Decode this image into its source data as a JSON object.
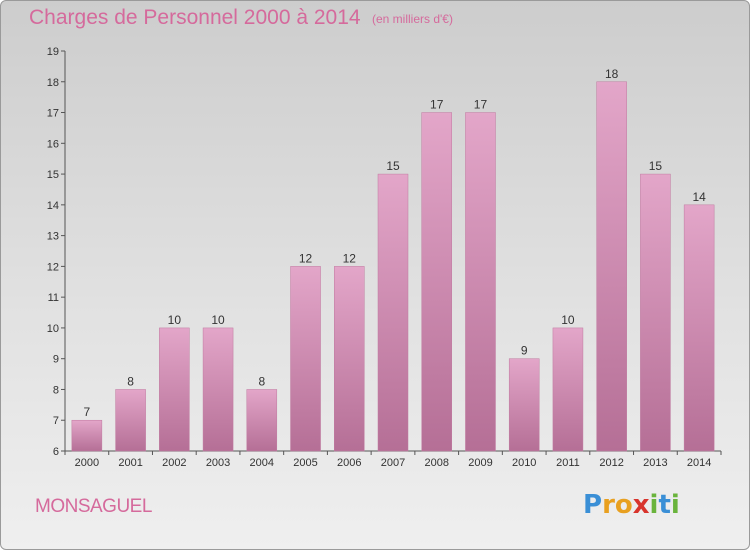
{
  "header": {
    "title": "Charges de Personnel 2000 à 2014",
    "unit_note": "(en milliers d'€)"
  },
  "footer": {
    "commune": "MONSAGUEL",
    "logo_text": "Proxiti",
    "logo_letters": [
      {
        "char": "P",
        "color": "#3a8fd6"
      },
      {
        "char": "r",
        "color": "#e8a020"
      },
      {
        "char": "o",
        "color": "#e8a020"
      },
      {
        "char": "x",
        "color": "#d8342c"
      },
      {
        "char": "i",
        "color": "#6ab43c"
      },
      {
        "char": "t",
        "color": "#3a8fd6"
      },
      {
        "char": "i",
        "color": "#6ab43c"
      }
    ]
  },
  "colors": {
    "title": "#d56a9c",
    "bar_top": "#e3a6c9",
    "bar_bottom": "#b56f96",
    "bar_edge": "#c07aa0"
  },
  "chart_data": {
    "type": "bar",
    "title": "Charges de Personnel 2000 à 2014",
    "subtitle": "(en milliers d'€)",
    "xlabel": "",
    "ylabel": "",
    "categories": [
      "2000",
      "2001",
      "2002",
      "2003",
      "2004",
      "2005",
      "2006",
      "2007",
      "2008",
      "2009",
      "2010",
      "2011",
      "2012",
      "2013",
      "2014"
    ],
    "values": [
      7,
      8,
      10,
      10,
      8,
      12,
      12,
      15,
      17,
      17,
      9,
      10,
      18,
      15,
      14
    ],
    "ylim": [
      6,
      19
    ],
    "yticks": [
      6,
      7,
      8,
      9,
      10,
      11,
      12,
      13,
      14,
      15,
      16,
      17,
      18,
      19
    ],
    "grid": false,
    "legend": "none",
    "data_labels": true
  }
}
